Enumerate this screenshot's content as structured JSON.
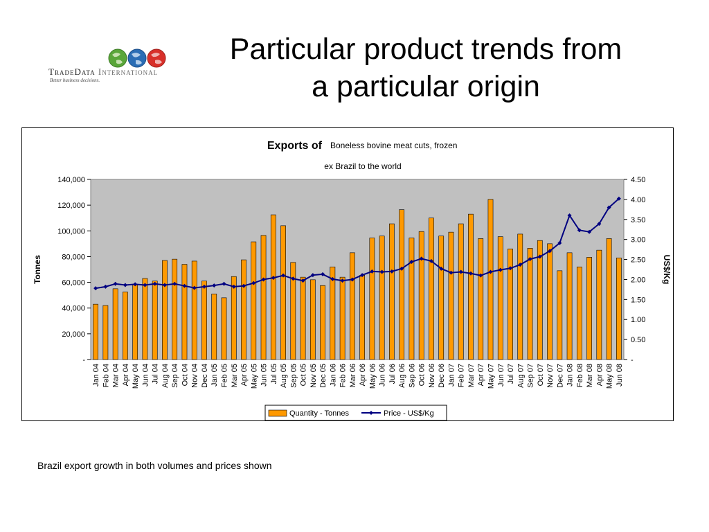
{
  "logo": {
    "brand_part1": "TradeData",
    "brand_part2": "International",
    "tagline": "Better business decisions.",
    "globe_colors": [
      "#5aa63a",
      "#2a6db5",
      "#d8302a"
    ]
  },
  "slide": {
    "title_line1": "Particular product trends from",
    "title_line2": "a particular origin",
    "caption": "Brazil export growth in both volumes and prices shown"
  },
  "chart_data": {
    "type": "bar",
    "title_prefix": "Exports of",
    "title_product": "Boneless bovine meat cuts, frozen",
    "subtitle": "ex Brazil to the world",
    "xlabel": "",
    "ylabel": "Tonnes",
    "y2label": "US$/Kg",
    "ylim": [
      0,
      140000
    ],
    "y2lim": [
      0,
      4.5
    ],
    "y_ticks": [
      "-",
      "20,000",
      "40,000",
      "60,000",
      "80,000",
      "100,000",
      "120,000",
      "140,000"
    ],
    "y2_ticks": [
      "-",
      "0.50",
      "1.00",
      "1.50",
      "2.00",
      "2.50",
      "3.00",
      "3.50",
      "4.00",
      "4.50"
    ],
    "plot_background": "#c0c0c0",
    "bar_color": "#ff9900",
    "line_color": "#000080",
    "legend_position": "bottom",
    "categories": [
      "Jan 04",
      "Feb 04",
      "Mar 04",
      "Apr 04",
      "May 04",
      "Jun 04",
      "Jul 04",
      "Aug 04",
      "Sep 04",
      "Oct 04",
      "Nov 04",
      "Dec 04",
      "Jan 05",
      "Feb 05",
      "Mar 05",
      "Apr 05",
      "May 05",
      "Jun 05",
      "Jul 05",
      "Aug 05",
      "Sep 05",
      "Oct 05",
      "Nov 05",
      "Dec 05",
      "Jan 06",
      "Feb 06",
      "Mar 06",
      "Apr 06",
      "May 06",
      "Jun 06",
      "Jul 06",
      "Aug 06",
      "Sep 06",
      "Oct 06",
      "Nov 06",
      "Dec 06",
      "Jan 07",
      "Feb 07",
      "Mar 07",
      "Apr 07",
      "May 07",
      "Jun 07",
      "Jul 07",
      "Aug 07",
      "Sep 07",
      "Oct 07",
      "Nov 07",
      "Dec 07",
      "Jan 08",
      "Feb 08",
      "Mar 08",
      "Apr 08",
      "May 08",
      "Jun 08"
    ],
    "series": [
      {
        "name": "Quantity - Tonnes",
        "type": "bar",
        "axis": "left",
        "values": [
          43000,
          42000,
          55000,
          52500,
          58500,
          63000,
          61000,
          77000,
          78000,
          74000,
          76500,
          61000,
          51000,
          48000,
          64500,
          77500,
          91500,
          96500,
          112500,
          104000,
          75500,
          64000,
          62000,
          57500,
          72000,
          64000,
          83000,
          65500,
          94500,
          96000,
          105500,
          116500,
          94500,
          99500,
          110000,
          96000,
          99000,
          105500,
          113000,
          94000,
          124500,
          95500,
          86000,
          97500,
          86500,
          92500,
          90000,
          69000,
          83000,
          72000,
          79500,
          85000,
          94000,
          79000
        ]
      },
      {
        "name": "Price - US$/Kg",
        "type": "line",
        "axis": "right",
        "values": [
          1.78,
          1.82,
          1.89,
          1.86,
          1.88,
          1.86,
          1.89,
          1.86,
          1.89,
          1.84,
          1.79,
          1.82,
          1.85,
          1.89,
          1.82,
          1.84,
          1.91,
          2.0,
          2.04,
          2.1,
          2.02,
          1.97,
          2.11,
          2.13,
          2.01,
          1.97,
          2.0,
          2.11,
          2.2,
          2.19,
          2.2,
          2.27,
          2.44,
          2.52,
          2.46,
          2.27,
          2.17,
          2.19,
          2.15,
          2.1,
          2.19,
          2.24,
          2.28,
          2.37,
          2.51,
          2.57,
          2.71,
          2.91,
          3.6,
          3.23,
          3.19,
          3.39,
          3.8,
          4.02
        ]
      }
    ]
  }
}
